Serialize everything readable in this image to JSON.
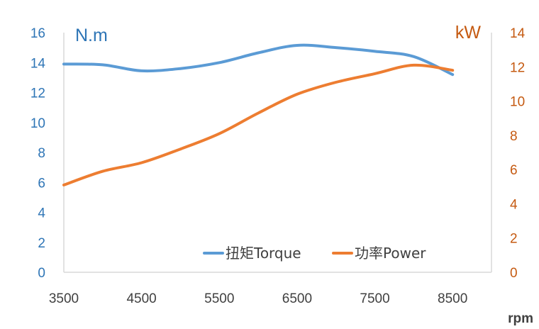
{
  "chart_data": {
    "type": "line",
    "x": [
      3500,
      4000,
      4500,
      5000,
      5500,
      6000,
      6500,
      7000,
      7500,
      8000,
      8500
    ],
    "x_ticks": [
      "3500",
      "4500",
      "5500",
      "6500",
      "7500",
      "8500"
    ],
    "x_tick_values": [
      3500,
      4500,
      5500,
      6500,
      7500,
      8500
    ],
    "xlim": [
      3500,
      9000
    ],
    "xlabel": "rpm",
    "y_left": {
      "label": "N.m",
      "lim": [
        0,
        16
      ],
      "ticks": [
        "0",
        "2",
        "4",
        "6",
        "8",
        "10",
        "12",
        "14",
        "16"
      ],
      "color": "#2E75B6"
    },
    "y_right": {
      "label": "kW",
      "lim": [
        0,
        14
      ],
      "ticks": [
        "0",
        "2",
        "4",
        "6",
        "8",
        "10",
        "12",
        "14"
      ],
      "color": "#C55A11"
    },
    "series": [
      {
        "name": "扭矩Torque",
        "axis": "left",
        "color": "#5B9BD5",
        "values": [
          13.9,
          13.85,
          13.45,
          13.6,
          14.0,
          14.65,
          15.15,
          15.0,
          14.75,
          14.4,
          13.2
        ]
      },
      {
        "name": "功率Power",
        "axis": "right",
        "color": "#ED7D31",
        "values": [
          5.1,
          5.9,
          6.4,
          7.2,
          8.1,
          9.3,
          10.4,
          11.1,
          11.6,
          12.1,
          11.8
        ]
      }
    ],
    "legend_position": "bottom-right",
    "grid": false
  }
}
